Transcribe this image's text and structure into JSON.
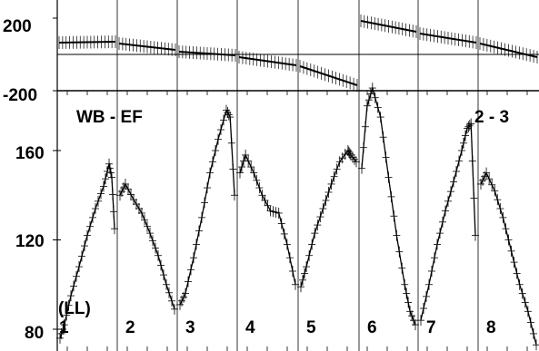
{
  "chart_data": {
    "type": "line",
    "annotations": {
      "title_left": "WB - EF",
      "title_right": "2 - 3",
      "lead_label": "(LL)"
    },
    "top": {
      "ylim": [
        -200,
        200
      ],
      "ticks": [
        "200",
        "-200"
      ],
      "tick_values": [
        200,
        -200
      ],
      "series": [
        {
          "panel": "1",
          "start": 65,
          "end": 70
        },
        {
          "panel": "2",
          "start": 60,
          "end": 25
        },
        {
          "panel": "3",
          "start": 15,
          "end": -5
        },
        {
          "panel": "4",
          "start": -15,
          "end": -60
        },
        {
          "panel": "5",
          "start": -65,
          "end": -170
        },
        {
          "panel": "6",
          "start": 185,
          "end": 125
        },
        {
          "panel": "7",
          "start": 115,
          "end": 65
        },
        {
          "panel": "8",
          "start": 60,
          "end": -15
        }
      ]
    },
    "bottom": {
      "ylim": [
        76,
        190
      ],
      "ticks": [
        "160",
        "120",
        "80"
      ],
      "tick_values": [
        160,
        120,
        80
      ],
      "panels": [
        {
          "label": "1",
          "x": [
            0,
            0.08,
            0.2,
            0.35,
            0.5,
            0.65,
            0.8,
            0.9,
            0.95,
            1
          ],
          "y": [
            76,
            82,
            95,
            108,
            122,
            134,
            144,
            154,
            148,
            125
          ]
        },
        {
          "label": "2",
          "x": [
            0,
            0.1,
            0.25,
            0.4,
            0.55,
            0.7,
            0.85,
            1
          ],
          "y": [
            140,
            145,
            138,
            132,
            123,
            113,
            100,
            89
          ]
        },
        {
          "label": "3",
          "x": [
            0,
            0.1,
            0.25,
            0.4,
            0.55,
            0.7,
            0.85,
            0.92,
            1
          ],
          "y": [
            91,
            96,
            112,
            130,
            150,
            165,
            178,
            175,
            140
          ]
        },
        {
          "label": "4",
          "x": [
            0,
            0.1,
            0.25,
            0.4,
            0.55,
            0.7,
            0.85,
            1
          ],
          "y": [
            150,
            158,
            150,
            140,
            133,
            132,
            118,
            100
          ]
        },
        {
          "label": "5",
          "x": [
            0,
            0.1,
            0.25,
            0.4,
            0.55,
            0.7,
            0.85,
            0.9,
            1
          ],
          "y": [
            99,
            108,
            123,
            134,
            145,
            155,
            160,
            158,
            155
          ]
        },
        {
          "label": "6",
          "x": [
            0,
            0.1,
            0.2,
            0.35,
            0.5,
            0.65,
            0.8,
            0.9,
            1
          ],
          "y": [
            152,
            180,
            188,
            175,
            148,
            122,
            100,
            88,
            82
          ]
        },
        {
          "label": "7",
          "x": [
            0,
            0.15,
            0.3,
            0.45,
            0.6,
            0.75,
            0.85,
            0.92,
            1
          ],
          "y": [
            84,
            100,
            118,
            133,
            146,
            160,
            170,
            172,
            122
          ]
        },
        {
          "label": "8",
          "x": [
            0,
            0.1,
            0.25,
            0.4,
            0.55,
            0.7,
            0.85,
            1
          ],
          "y": [
            145,
            150,
            142,
            130,
            115,
            100,
            88,
            73
          ]
        }
      ]
    }
  }
}
